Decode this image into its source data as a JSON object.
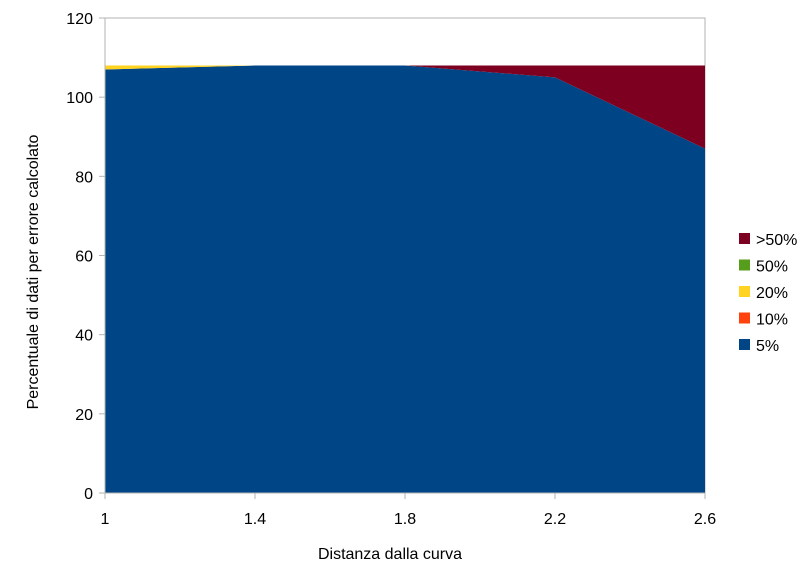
{
  "chart_data": {
    "type": "area",
    "stacked": true,
    "x": [
      1,
      1.4,
      1.8,
      2.2,
      2.6
    ],
    "x_tick_labels": [
      "1",
      "1.4",
      "1.8",
      "2.2",
      "2.6"
    ],
    "y_tick_labels": [
      "0",
      "20",
      "40",
      "60",
      "80",
      "100",
      "120"
    ],
    "xlabel": "Distanza dalla curva",
    "ylabel": "Percentuale di dati per errore calcolato",
    "ylim": [
      0,
      120
    ],
    "grid": false,
    "legend_position": "right",
    "series": [
      {
        "name": "5%",
        "color": "#004586",
        "values": [
          107,
          108,
          108,
          105,
          87
        ]
      },
      {
        "name": "10%",
        "color": "#ff420e",
        "values": [
          0,
          0,
          0,
          0,
          0
        ]
      },
      {
        "name": "20%",
        "color": "#ffd320",
        "values": [
          1,
          0,
          0,
          0,
          0
        ]
      },
      {
        "name": "50%",
        "color": "#579d1c",
        "values": [
          0,
          0,
          0,
          0,
          0
        ]
      },
      {
        "name": ">50%",
        "color": "#7e0021",
        "values": [
          0,
          0,
          0,
          3,
          21
        ]
      }
    ]
  }
}
